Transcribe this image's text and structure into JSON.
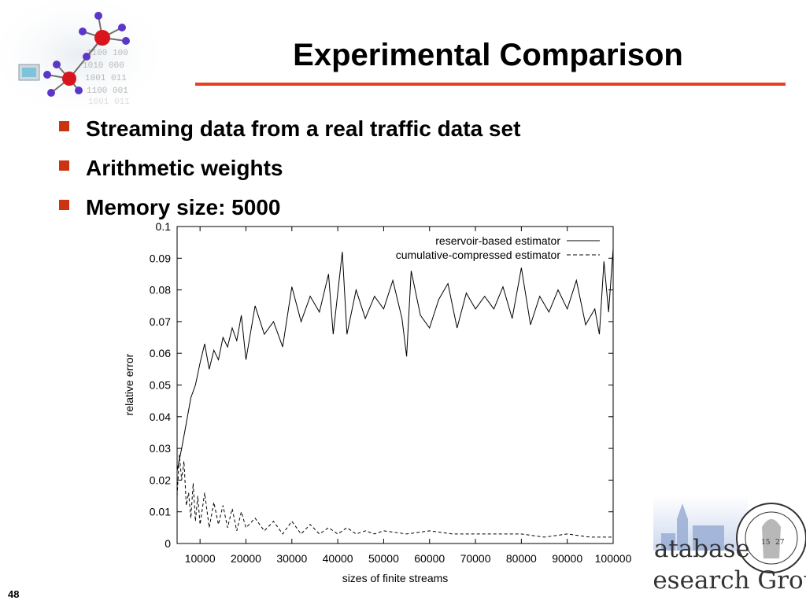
{
  "slide": {
    "title": "Experimental Comparison",
    "page_number": "48",
    "bullets": [
      "Streaming data from a real traffic data set",
      "Arithmetic weights",
      "Memory size: 5000"
    ],
    "colors": {
      "accent_rule": "#e8401c",
      "bullet": "#cc3311"
    },
    "logo": {
      "lines": [
        "Database",
        "Research Group"
      ],
      "seal_text": "PHILIPPS-UNIVERSITÄT MARBURG",
      "seal_years": [
        "15",
        "27"
      ]
    }
  },
  "chart_data": {
    "type": "line",
    "xlabel": "sizes of finite streams",
    "ylabel": "relative error",
    "xlim": [
      5000,
      100000
    ],
    "ylim": [
      0,
      0.1
    ],
    "xticks": [
      10000,
      20000,
      30000,
      40000,
      50000,
      60000,
      70000,
      80000,
      90000,
      100000
    ],
    "yticks": [
      "0",
      "0.01",
      "0.02",
      "0.03",
      "0.04",
      "0.05",
      "0.06",
      "0.07",
      "0.08",
      "0.09",
      "0.1"
    ],
    "legend": "top-right",
    "grid": false,
    "series": [
      {
        "name": "reservoir-based estimator",
        "dash": "solid",
        "x": [
          5000,
          6000,
          7000,
          8000,
          9000,
          10000,
          11000,
          12000,
          13000,
          14000,
          15000,
          16000,
          17000,
          18000,
          19000,
          20000,
          22000,
          24000,
          26000,
          28000,
          30000,
          32000,
          34000,
          36000,
          38000,
          39000,
          40000,
          41000,
          42000,
          44000,
          46000,
          48000,
          50000,
          52000,
          54000,
          55000,
          56000,
          58000,
          60000,
          62000,
          64000,
          66000,
          68000,
          70000,
          72000,
          74000,
          76000,
          78000,
          80000,
          82000,
          84000,
          86000,
          88000,
          90000,
          92000,
          94000,
          96000,
          97000,
          98000,
          99000,
          100000
        ],
        "y": [
          0.023,
          0.03,
          0.038,
          0.046,
          0.05,
          0.057,
          0.063,
          0.055,
          0.061,
          0.058,
          0.065,
          0.062,
          0.068,
          0.064,
          0.072,
          0.058,
          0.075,
          0.066,
          0.07,
          0.062,
          0.081,
          0.07,
          0.078,
          0.073,
          0.085,
          0.066,
          0.079,
          0.092,
          0.066,
          0.08,
          0.071,
          0.078,
          0.074,
          0.083,
          0.071,
          0.059,
          0.086,
          0.072,
          0.068,
          0.077,
          0.082,
          0.068,
          0.079,
          0.074,
          0.078,
          0.074,
          0.081,
          0.071,
          0.087,
          0.069,
          0.078,
          0.073,
          0.08,
          0.074,
          0.083,
          0.069,
          0.074,
          0.066,
          0.089,
          0.073,
          0.093
        ]
      },
      {
        "name": "cumulative-compressed estimator",
        "dash": "dashed",
        "x": [
          5000,
          5500,
          6000,
          6500,
          7000,
          7500,
          8000,
          8500,
          9000,
          9500,
          10000,
          11000,
          12000,
          13000,
          14000,
          15000,
          16000,
          17000,
          18000,
          19000,
          20000,
          22000,
          24000,
          26000,
          28000,
          30000,
          32000,
          34000,
          36000,
          38000,
          40000,
          42000,
          44000,
          46000,
          48000,
          50000,
          55000,
          60000,
          65000,
          70000,
          75000,
          80000,
          85000,
          90000,
          95000,
          100000
        ],
        "y": [
          0.015,
          0.028,
          0.02,
          0.026,
          0.012,
          0.016,
          0.008,
          0.019,
          0.007,
          0.015,
          0.006,
          0.016,
          0.005,
          0.013,
          0.006,
          0.012,
          0.005,
          0.011,
          0.004,
          0.01,
          0.005,
          0.008,
          0.004,
          0.007,
          0.003,
          0.007,
          0.003,
          0.006,
          0.003,
          0.005,
          0.003,
          0.005,
          0.003,
          0.004,
          0.003,
          0.004,
          0.003,
          0.004,
          0.003,
          0.003,
          0.003,
          0.003,
          0.002,
          0.003,
          0.002,
          0.002
        ]
      }
    ]
  }
}
